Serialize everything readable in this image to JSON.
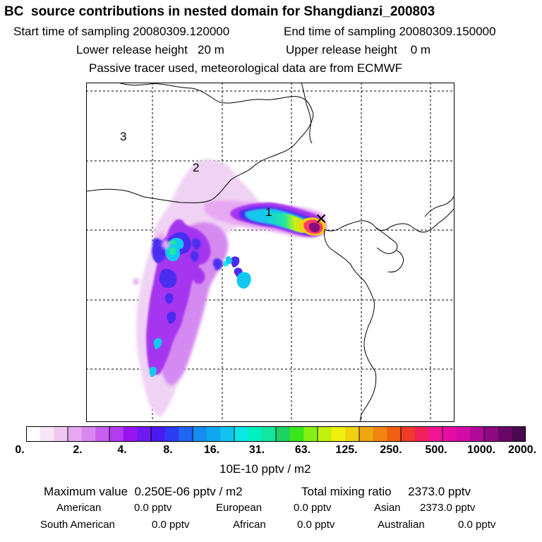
{
  "header": {
    "title": "BC  source contributions in nested domain for Shangdianzi_200803",
    "start_time": "Start time of sampling 20080309.120000",
    "end_time": "End time of sampling 20080309.150000",
    "lower_height": "Lower release height   20 m",
    "upper_height": "Upper release height    0 m",
    "tracer_note": "Passive tracer used, meteorological data are from ECMWF"
  },
  "map": {
    "region_labels": [
      "3",
      "2",
      "1"
    ],
    "receptor_marker": "×",
    "plume_colors": [
      "#f7d6f7",
      "#d58af1",
      "#a636ef",
      "#4b2df0",
      "#12c8f0",
      "#1fe8e8",
      "#e8f41c",
      "#ff3a6a",
      "#8a0c7a"
    ]
  },
  "colorbar": {
    "colors": [
      "#ffffff",
      "#f7e6f7",
      "#efc8f2",
      "#e7a8f2",
      "#d888f0",
      "#c860ef",
      "#b23cf0",
      "#9615ef",
      "#6f1aef",
      "#4a1bf0",
      "#2c3cf0",
      "#1f66f0",
      "#148cf0",
      "#0fa7f0",
      "#12c2f0",
      "#0be8e4",
      "#00f0c0",
      "#12e6a0",
      "#1fd064",
      "#3ce61c",
      "#87f013",
      "#c4f010",
      "#f0f010",
      "#f0d010",
      "#f0a610",
      "#f08510",
      "#f06010",
      "#f03a2a",
      "#f0205a",
      "#f01592",
      "#e60da4",
      "#d00ca6",
      "#b00a96",
      "#8e0a82",
      "#6a0868",
      "#4a0850"
    ],
    "ticks": [
      "0.",
      "2.",
      "4.",
      "8.",
      "16.",
      "31.",
      "63.",
      "125.",
      "250.",
      "500.",
      "1000.",
      "2000."
    ],
    "units": "10E-10 pptv / m2"
  },
  "summary": {
    "max_value": "Maximum value  0.250E-06 pptv / m2",
    "total_mixing": "Total mixing ratio     2373.0 pptv",
    "regions": [
      {
        "name": "American",
        "value": "0.0 pptv"
      },
      {
        "name": "European",
        "value": "0.0 pptv"
      },
      {
        "name": "Asian",
        "value": "2373.0 pptv"
      },
      {
        "name": "South American",
        "value": "0.0 pptv"
      },
      {
        "name": "African",
        "value": "0.0 pptv"
      },
      {
        "name": "Australian",
        "value": "0.0 pptv"
      }
    ]
  }
}
